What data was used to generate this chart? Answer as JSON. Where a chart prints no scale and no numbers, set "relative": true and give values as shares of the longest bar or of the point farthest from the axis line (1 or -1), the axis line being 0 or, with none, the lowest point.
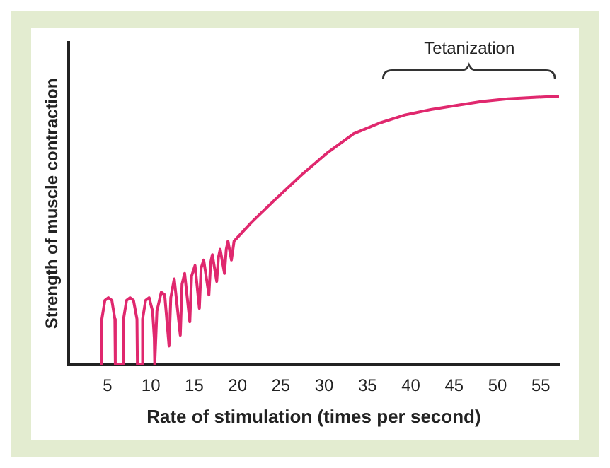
{
  "chart_data": {
    "type": "line",
    "xlabel": "Rate of stimulation (times per second)",
    "ylabel": "Strength of muscle contraction",
    "relative": true,
    "xlim": [
      0.5,
      57.1
    ],
    "xticks": [
      5,
      10,
      15,
      20,
      25,
      30,
      35,
      40,
      45,
      50,
      55
    ],
    "grid": false,
    "legend": false,
    "marker": "none",
    "line_style": "solid",
    "annotations": [
      "Tetanization"
    ],
    "series": [
      {
        "color": "#e0286e",
        "x": [
          4.3,
          4.35,
          4.7,
          5.1,
          5.5,
          5.85,
          5.9,
          6.8,
          6.85,
          7.2,
          7.6,
          8.0,
          8.4,
          8.45,
          9.0,
          9.05,
          9.4,
          9.8,
          10.2,
          10.4,
          10.45,
          10.7,
          11.2,
          11.6,
          12.1,
          12.3,
          12.7,
          13.4,
          13.6,
          13.9,
          14.5,
          14.7,
          15.1,
          15.6,
          15.8,
          16.1,
          16.7,
          16.9,
          17.1,
          17.6,
          17.8,
          18.0,
          18.5,
          18.7,
          18.9,
          19.3,
          19.6,
          21.6,
          24.5,
          27.5,
          30.4,
          33.4,
          36.4,
          39.3,
          42.3,
          45.2,
          48.2,
          51.2,
          57.1
        ],
        "values": [
          0,
          0.17,
          0.24,
          0.25,
          0.24,
          0.17,
          0,
          0,
          0.17,
          0.24,
          0.25,
          0.24,
          0.17,
          0,
          0,
          0.17,
          0.24,
          0.25,
          0.2,
          0.1,
          0,
          0.2,
          0.27,
          0.26,
          0.07,
          0.25,
          0.32,
          0.11,
          0.3,
          0.34,
          0.16,
          0.33,
          0.37,
          0.21,
          0.36,
          0.39,
          0.26,
          0.38,
          0.41,
          0.31,
          0.4,
          0.43,
          0.34,
          0.43,
          0.46,
          0.39,
          0.46,
          0.53,
          0.62,
          0.71,
          0.79,
          0.86,
          0.9,
          0.93,
          0.95,
          0.965,
          0.98,
          0.99,
          1
        ]
      }
    ]
  }
}
